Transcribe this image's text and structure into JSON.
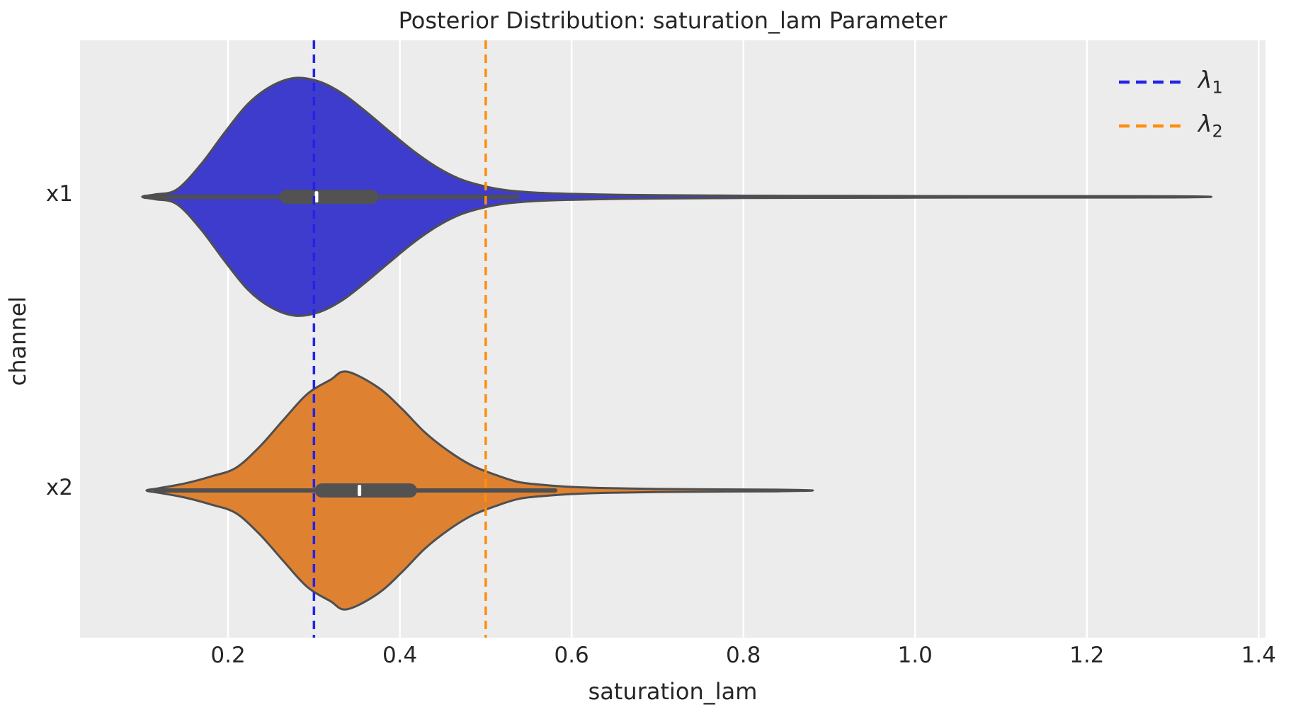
{
  "chart_data": {
    "type": "violin",
    "title": "Posterior Distribution: saturation_lam Parameter",
    "xlabel": "saturation_lam",
    "ylabel": "channel",
    "categories": [
      "x1",
      "x2"
    ],
    "x_axis": {
      "ticks": [
        0.2,
        0.4,
        0.6,
        0.8,
        1.0,
        1.2,
        1.4
      ],
      "tick_labels": [
        "0.2",
        "0.4",
        "0.6",
        "0.8",
        "1.0",
        "1.2",
        "1.4"
      ],
      "range": [
        0.0276,
        1.408
      ],
      "grid": true
    },
    "series": [
      {
        "channel": "x1",
        "fill_color": "#3E3CCD",
        "mode": 0.28,
        "box": {
          "whisker_low": 0.103,
          "q1": 0.26,
          "median": 0.303,
          "q3": 0.375,
          "whisker_high": 0.537
        },
        "tail_max": 1.345,
        "profile": [
          [
            0.1,
            0.0
          ],
          [
            0.115,
            0.02
          ],
          [
            0.14,
            0.06
          ],
          [
            0.168,
            0.27
          ],
          [
            0.196,
            0.54
          ],
          [
            0.223,
            0.78
          ],
          [
            0.25,
            0.93
          ],
          [
            0.278,
            1.0
          ],
          [
            0.306,
            0.97
          ],
          [
            0.333,
            0.87
          ],
          [
            0.36,
            0.72
          ],
          [
            0.388,
            0.55
          ],
          [
            0.415,
            0.39
          ],
          [
            0.443,
            0.25
          ],
          [
            0.47,
            0.15
          ],
          [
            0.498,
            0.09
          ],
          [
            0.525,
            0.055
          ],
          [
            0.56,
            0.035
          ],
          [
            0.6,
            0.025
          ],
          [
            0.65,
            0.018
          ],
          [
            0.7,
            0.014
          ],
          [
            0.8,
            0.01
          ],
          [
            0.9,
            0.008
          ],
          [
            1.0,
            0.007
          ],
          [
            1.1,
            0.006
          ],
          [
            1.2,
            0.006
          ],
          [
            1.3,
            0.005
          ],
          [
            1.345,
            0.0
          ]
        ]
      },
      {
        "channel": "x2",
        "fill_color": "#DE8232",
        "mode": 0.34,
        "box": {
          "whisker_low": 0.115,
          "q1": 0.301,
          "median": 0.353,
          "q3": 0.42,
          "whisker_high": 0.581
        },
        "tail_max": 0.881,
        "profile": [
          [
            0.105,
            0.0
          ],
          [
            0.12,
            0.02
          ],
          [
            0.15,
            0.06
          ],
          [
            0.181,
            0.12
          ],
          [
            0.209,
            0.19
          ],
          [
            0.237,
            0.37
          ],
          [
            0.264,
            0.59
          ],
          [
            0.292,
            0.81
          ],
          [
            0.319,
            0.93
          ],
          [
            0.338,
            1.0
          ],
          [
            0.374,
            0.87
          ],
          [
            0.402,
            0.69
          ],
          [
            0.429,
            0.49
          ],
          [
            0.457,
            0.33
          ],
          [
            0.484,
            0.21
          ],
          [
            0.512,
            0.13
          ],
          [
            0.539,
            0.07
          ],
          [
            0.57,
            0.045
          ],
          [
            0.6,
            0.03
          ],
          [
            0.64,
            0.02
          ],
          [
            0.7,
            0.013
          ],
          [
            0.78,
            0.009
          ],
          [
            0.84,
            0.007
          ],
          [
            0.881,
            0.0
          ]
        ]
      }
    ],
    "reference_lines": [
      {
        "name": "lambda_1",
        "symbol": "λ",
        "subscript": "1",
        "value": 0.3,
        "color": "#2323E6"
      },
      {
        "name": "lambda_2",
        "symbol": "λ",
        "subscript": "2",
        "value": 0.5,
        "color": "#FF8D0D"
      }
    ],
    "legend": {
      "position": "upper-right"
    },
    "style": {
      "axes_background": "#ECECEC",
      "grid_color": "#FFFFFF",
      "violin_edge_color": "#4F4F4F",
      "box_color": "#525252",
      "whisker_color": "#4F4F4F",
      "median_color": "#FFFFFF",
      "text_color": "#262626"
    }
  }
}
